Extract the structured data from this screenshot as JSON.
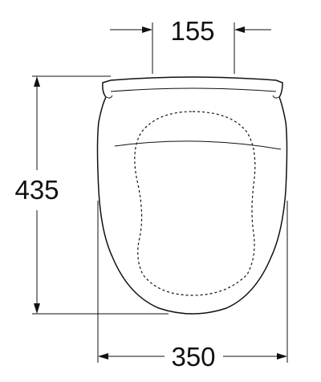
{
  "dimensions": {
    "top_width": "155",
    "height": "435",
    "bottom_width": "350"
  },
  "colors": {
    "line": "#111111",
    "background": "#ffffff"
  }
}
